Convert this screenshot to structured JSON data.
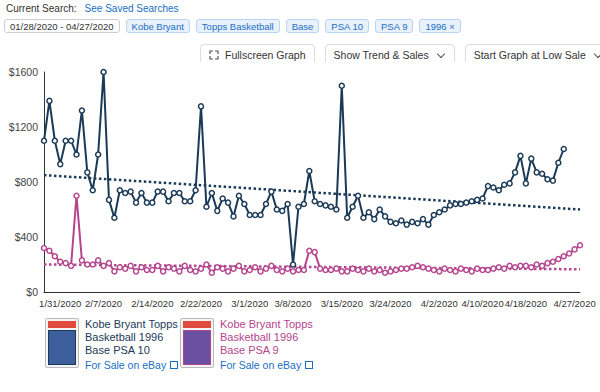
{
  "page": {
    "current_search": "Current Search:",
    "saved_link": "See Saved Searches",
    "filters": [
      "01/28/2020 - 04/27/2020",
      "Kobe Bryant",
      "Topps Basketball",
      "Base",
      "PSA 10",
      "PSA 9",
      "1996 ×"
    ],
    "buttons": [
      "Fullscreen Graph",
      "Show Trend & Sales",
      "Start Graph at Low Sale"
    ],
    "card_link": "For Sale on eBay"
  },
  "chart_data": {
    "type": "line",
    "categories": [
      null,
      null,
      null,
      "1/31/2020",
      null,
      null,
      null,
      null,
      null,
      null,
      null,
      "2/7/2020",
      null,
      null,
      null,
      null,
      null,
      null,
      null,
      null,
      "2/14/2020",
      null,
      null,
      null,
      null,
      null,
      null,
      null,
      null,
      "2/22/2020",
      null,
      null,
      null,
      null,
      null,
      null,
      null,
      null,
      "3/1/2020",
      null,
      null,
      null,
      null,
      null,
      null,
      null,
      "3/8/2020",
      null,
      null,
      null,
      null,
      null,
      null,
      null,
      null,
      "3/15/2020",
      null,
      null,
      null,
      null,
      null,
      null,
      null,
      null,
      "3/24/2020",
      null,
      null,
      null,
      null,
      null,
      null,
      null,
      null,
      "4/2/2020",
      null,
      null,
      null,
      null,
      null,
      null,
      null,
      "4/10/2020",
      null,
      null,
      null,
      null,
      null,
      null,
      null,
      "4/18/2020",
      null,
      null,
      null,
      null,
      null,
      null,
      null,
      null,
      "4/27/2020",
      null
    ],
    "series": [
      {
        "name": "Kobe Bryant Topps Basketball 1996 Base PSA 10",
        "color": "#1b3a57",
        "marker": "circle",
        "values": [
          1100,
          1390,
          1100,
          930,
          1100,
          1100,
          1000,
          1320,
          870,
          740,
          1000,
          1600,
          670,
          540,
          740,
          720,
          730,
          650,
          720,
          650,
          650,
          730,
          730,
          660,
          720,
          720,
          660,
          660,
          740,
          1350,
          620,
          720,
          590,
          680,
          650,
          550,
          700,
          640,
          560,
          560,
          560,
          640,
          730,
          600,
          590,
          640,
          200,
          620,
          640,
          880,
          660,
          640,
          630,
          620,
          600,
          1500,
          540,
          620,
          700,
          540,
          580,
          530,
          600,
          550,
          510,
          500,
          520,
          490,
          510,
          500,
          530,
          490,
          560,
          580,
          600,
          630,
          640,
          640,
          650,
          660,
          670,
          680,
          770,
          760,
          740,
          780,
          790,
          870,
          990,
          790,
          970,
          870,
          860,
          820,
          810,
          940,
          1040,
          null,
          null,
          null
        ],
        "trend": [
          850,
          600
        ]
      },
      {
        "name": "Kobe Bryant Topps Basketball 1996 Base PSA 9",
        "color": "#b4458e",
        "marker": "circle",
        "values": [
          320,
          300,
          260,
          220,
          210,
          190,
          700,
          230,
          200,
          200,
          230,
          190,
          210,
          150,
          180,
          170,
          190,
          150,
          180,
          160,
          160,
          190,
          150,
          180,
          170,
          150,
          190,
          160,
          150,
          170,
          200,
          140,
          180,
          170,
          150,
          170,
          190,
          150,
          160,
          180,
          150,
          170,
          190,
          160,
          150,
          170,
          150,
          160,
          160,
          300,
          290,
          170,
          160,
          160,
          170,
          150,
          150,
          170,
          160,
          150,
          170,
          150,
          160,
          140,
          150,
          160,
          170,
          170,
          180,
          190,
          180,
          170,
          160,
          150,
          170,
          160,
          150,
          170,
          160,
          150,
          170,
          160,
          160,
          170,
          180,
          170,
          190,
          180,
          190,
          190,
          180,
          200,
          190,
          210,
          220,
          240,
          260,
          280,
          310,
          340
        ],
        "trend": [
          200,
          165
        ]
      }
    ],
    "ylim": [
      0,
      1600
    ],
    "yticks": [
      {
        "value": 0,
        "label": "$0"
      },
      {
        "value": 400,
        "label": "$400"
      },
      {
        "value": 800,
        "label": "$800"
      },
      {
        "value": 1200,
        "label": "$1200"
      },
      {
        "value": 1600,
        "label": "$1600"
      }
    ],
    "grid": false
  }
}
